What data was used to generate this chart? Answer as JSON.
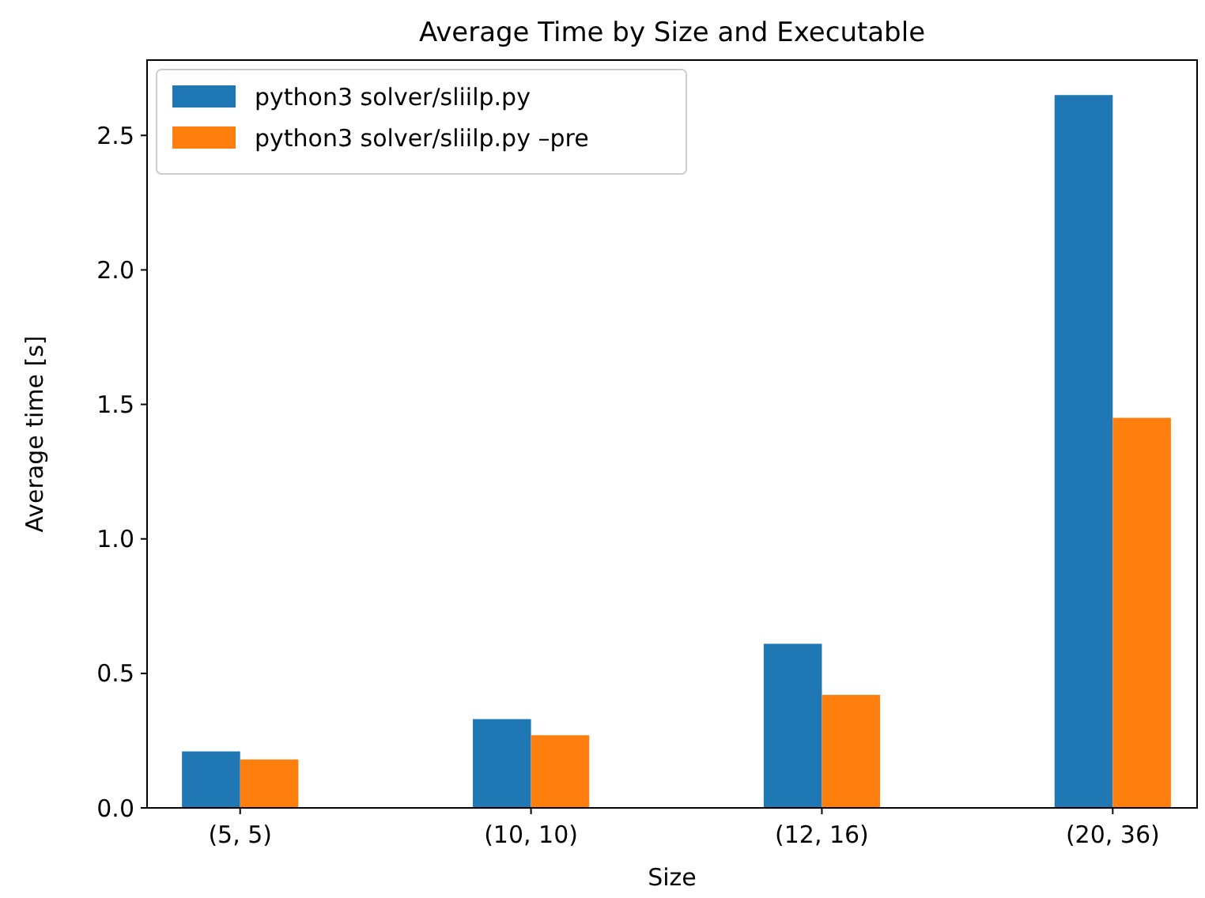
{
  "chart_data": {
    "type": "bar",
    "title": "Average Time by Size and Executable",
    "xlabel": "Size",
    "ylabel": "Average time [s]",
    "categories": [
      "(5, 5)",
      "(10, 10)",
      "(12, 16)",
      "(20, 36)"
    ],
    "series": [
      {
        "name": "python3 solver/sliilp.py",
        "color": "#1f77b4",
        "values": [
          0.21,
          0.33,
          0.61,
          2.65
        ]
      },
      {
        "name": "python3 solver/sliilp.py –pre",
        "color": "#ff7f0e",
        "values": [
          0.18,
          0.27,
          0.42,
          1.45
        ]
      }
    ],
    "ylim": [
      0,
      2.78
    ],
    "yticks": [
      {
        "value": 0,
        "label": "0.0"
      },
      {
        "value": 0.5,
        "label": "0.5"
      },
      {
        "value": 1,
        "label": "1.0"
      },
      {
        "value": 1.5,
        "label": "1.5"
      },
      {
        "value": 2,
        "label": "2.0"
      },
      {
        "value": 2.5,
        "label": "2.5"
      }
    ],
    "grid": false,
    "legend": "top left"
  }
}
